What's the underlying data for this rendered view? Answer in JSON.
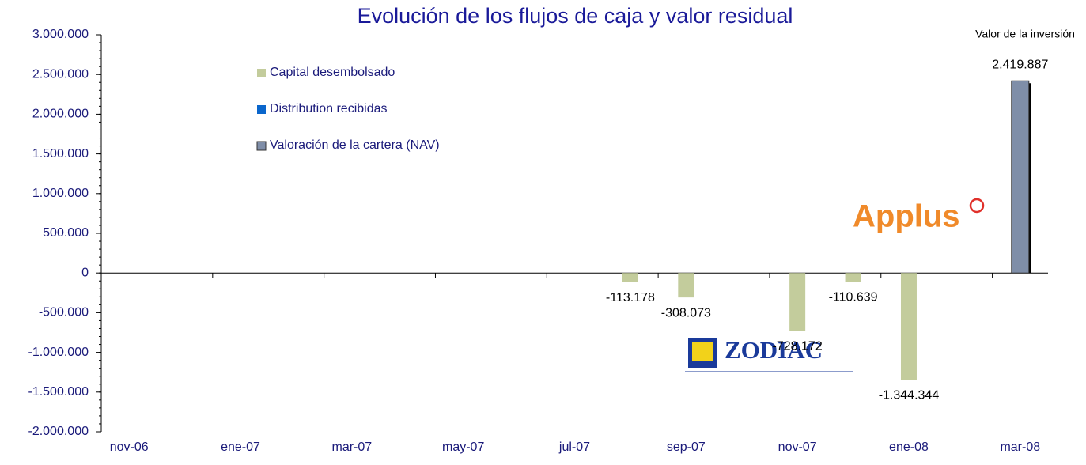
{
  "chart_data": {
    "type": "bar",
    "title": "Evolución de los flujos de caja y valor residual",
    "annotation": "Valor de la inversión",
    "logos": [
      "Applus",
      "ZODIAC"
    ],
    "categories": [
      "nov-06",
      null,
      "ene-07",
      null,
      "mar-07",
      null,
      "may-07",
      null,
      "jul-07",
      null,
      "sep-07",
      null,
      "nov-07",
      null,
      "ene-08",
      null,
      "mar-08"
    ],
    "series": [
      {
        "name": "Capital desembolsado",
        "color": "#c3cc9c",
        "values": [
          null,
          null,
          null,
          null,
          null,
          null,
          null,
          null,
          null,
          -113178,
          -308073,
          null,
          -728172,
          -110639,
          -1344344,
          null,
          null
        ],
        "value_labels": [
          null,
          null,
          null,
          null,
          null,
          null,
          null,
          null,
          null,
          "-113.178",
          "-308.073",
          null,
          "-728.172",
          "-110.639",
          "-1.344.344",
          null,
          null
        ]
      },
      {
        "name": "Distribution recibidas",
        "color": "#0a66cc",
        "values": [
          null,
          null,
          null,
          null,
          null,
          null,
          null,
          null,
          null,
          null,
          null,
          null,
          null,
          null,
          null,
          null,
          null
        ]
      },
      {
        "name": "Valoración de la cartera (NAV)",
        "color": "#7f8ea8",
        "values": [
          null,
          null,
          null,
          null,
          null,
          null,
          null,
          null,
          null,
          null,
          null,
          null,
          null,
          null,
          null,
          null,
          2419887
        ],
        "value_labels": [
          null,
          null,
          null,
          null,
          null,
          null,
          null,
          null,
          null,
          null,
          null,
          null,
          null,
          null,
          null,
          null,
          "2.419.887"
        ]
      }
    ],
    "ylim": [
      -2000000,
      3000000
    ],
    "yticks": [
      {
        "value": -2000000,
        "label": "-2.000.000"
      },
      {
        "value": -1500000,
        "label": "-1.500.000"
      },
      {
        "value": -1000000,
        "label": "-1.000.000"
      },
      {
        "value": -500000,
        "label": "-500.000"
      },
      0,
      {
        "value": 500000,
        "label": "500.000"
      },
      {
        "value": 1000000,
        "label": "1.000.000"
      },
      {
        "value": 1500000,
        "label": "1.500.000"
      },
      {
        "value": 2000000,
        "label": "2.000.000"
      },
      {
        "value": 2500000,
        "label": "2.500.000"
      },
      {
        "value": 3000000,
        "label": "3.000.000"
      }
    ],
    "legend": "upper left"
  }
}
